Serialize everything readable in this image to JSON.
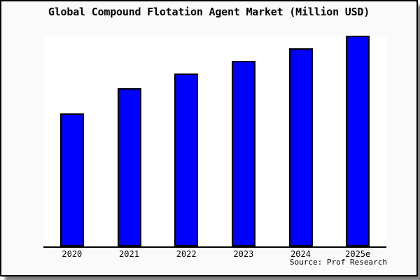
{
  "chart_data": {
    "type": "bar",
    "title": "Global Compound Flotation Agent Market (Million USD)",
    "categories": [
      "2020",
      "2021",
      "2022",
      "2023",
      "2024",
      "2025e"
    ],
    "values": [
      63,
      75,
      82,
      88,
      94,
      100
    ],
    "values_note": "No y-axis scale or value labels shown in chart; values are estimated bar heights relative to tallest bar (2025e = 100).",
    "xlabel": "",
    "ylabel": "",
    "ylim": [
      0,
      100
    ],
    "grid": false,
    "y_axis_visible": false,
    "legend": null,
    "source": "Source: Prof Research",
    "colors": {
      "figure_background": "#fafafa",
      "plot_background": "#ffffff",
      "bar_fill": "#0000ff",
      "bar_border": "#000000",
      "axis_line": "#000000",
      "text": "#000000",
      "frame_border": "#000000",
      "shadow": "#8e8e8e"
    }
  }
}
